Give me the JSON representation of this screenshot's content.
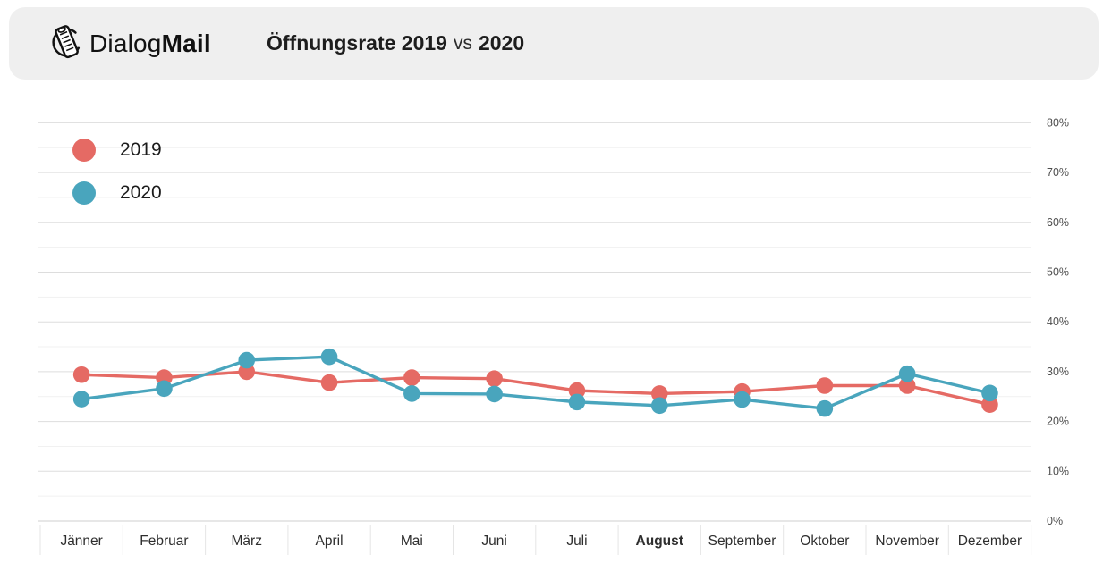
{
  "header": {
    "brand": {
      "regular": "Dialog",
      "bold": "Mail"
    },
    "title": {
      "main": "Öffnungsrate 2019",
      "vs": "vs",
      "year2": "2020"
    }
  },
  "chart_data": {
    "type": "line",
    "title": "Öffnungsrate 2019 vs 2020",
    "categories": [
      "Jänner",
      "Februar",
      "März",
      "April",
      "Mai",
      "Juni",
      "Juli",
      "August",
      "September",
      "Oktober",
      "November",
      "Dezember"
    ],
    "highlighted_category": "August",
    "series": [
      {
        "name": "2019",
        "color": "#e56a64",
        "values": [
          29.4,
          28.8,
          30.0,
          27.8,
          28.8,
          28.6,
          26.2,
          25.6,
          26.0,
          27.2,
          27.2,
          23.4
        ]
      },
      {
        "name": "2020",
        "color": "#49a5bd",
        "values": [
          24.5,
          26.6,
          32.3,
          33.0,
          25.6,
          25.5,
          23.9,
          23.2,
          24.4,
          22.6,
          29.6,
          25.7
        ]
      }
    ],
    "ylabel": "",
    "xlabel": "",
    "unit": "%",
    "ylim": [
      0,
      80
    ],
    "y_major_step": 10,
    "y_minor_step": 5,
    "y_tick_labels": [
      "0%",
      "10%",
      "20%",
      "30%",
      "40%",
      "50%",
      "60%",
      "70%",
      "80%"
    ],
    "y_axis_side": "right",
    "legend_position": "top-left",
    "grid": true
  },
  "colors": {
    "header_background": "#efefef",
    "grid_major": "#dddddd",
    "grid_minor": "#f1f1f1",
    "grid_zero": "#cfcfcf",
    "separator": "#e5e5e5",
    "axis_text": "#4d4d4d",
    "month_text": "#2e2e2e"
  }
}
